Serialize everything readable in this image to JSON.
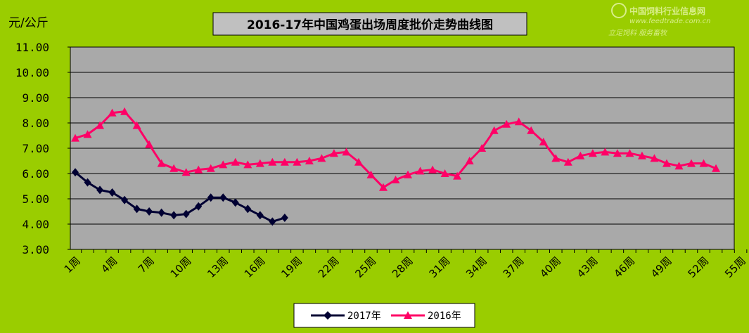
{
  "unit_label": "元/公斤",
  "watermark": {
    "name": "中国饲料行业信息网",
    "url": "www.feedtrade.com.cn",
    "slogan": "立足饲料  服务畜牧"
  },
  "chart_data": {
    "type": "line",
    "title": "2016-17年中国鸡蛋出场周度批价走势曲线图",
    "ylabel": "元/公斤",
    "xlabel": "",
    "ylim": [
      3.0,
      11.0
    ],
    "yticks": [
      "3.00",
      "4.00",
      "5.00",
      "6.00",
      "7.00",
      "8.00",
      "9.00",
      "10.00",
      "11.00"
    ],
    "xlim": [
      1,
      55
    ],
    "xticks": [
      "1周",
      "4周",
      "7周",
      "10周",
      "13周",
      "16周",
      "19周",
      "22周",
      "25周",
      "28周",
      "31周",
      "34周",
      "37周",
      "40周",
      "43周",
      "46周",
      "49周",
      "52周",
      "55周"
    ],
    "xtick_values": [
      1,
      4,
      7,
      10,
      13,
      16,
      19,
      22,
      25,
      28,
      31,
      34,
      37,
      40,
      43,
      46,
      49,
      52,
      55
    ],
    "grid": true,
    "legend_position": "bottom-center",
    "series": [
      {
        "name": "2017年",
        "color": "#000033",
        "marker": "diamond",
        "x": [
          1,
          2,
          3,
          4,
          5,
          6,
          7,
          8,
          9,
          10,
          11,
          12,
          13,
          14,
          15,
          16,
          17,
          18
        ],
        "values": [
          6.05,
          5.65,
          5.35,
          5.25,
          4.95,
          4.6,
          4.5,
          4.45,
          4.35,
          4.4,
          4.7,
          5.05,
          5.05,
          4.85,
          4.6,
          4.35,
          4.1,
          4.25
        ]
      },
      {
        "name": "2016年",
        "color": "#ff0066",
        "marker": "triangle",
        "x": [
          1,
          2,
          3,
          4,
          5,
          6,
          7,
          8,
          9,
          10,
          11,
          12,
          13,
          14,
          15,
          16,
          17,
          18,
          19,
          20,
          21,
          22,
          23,
          24,
          25,
          26,
          27,
          28,
          29,
          30,
          31,
          32,
          33,
          34,
          35,
          36,
          37,
          38,
          39,
          40,
          41,
          42,
          43,
          44,
          45,
          46,
          47,
          48,
          49,
          50,
          51,
          52,
          53
        ],
        "values": [
          7.4,
          7.55,
          7.9,
          8.4,
          8.45,
          7.9,
          7.15,
          6.4,
          6.2,
          6.05,
          6.15,
          6.2,
          6.35,
          6.45,
          6.35,
          6.4,
          6.45,
          6.45,
          6.45,
          6.5,
          6.6,
          6.8,
          6.85,
          6.45,
          5.95,
          5.45,
          5.75,
          5.95,
          6.1,
          6.15,
          6.0,
          5.9,
          6.5,
          7.0,
          7.7,
          7.95,
          8.05,
          7.7,
          7.25,
          6.6,
          6.45,
          6.7,
          6.8,
          6.85,
          6.8,
          6.8,
          6.7,
          6.6,
          6.4,
          6.3,
          6.4,
          6.4,
          6.2
        ]
      }
    ]
  }
}
